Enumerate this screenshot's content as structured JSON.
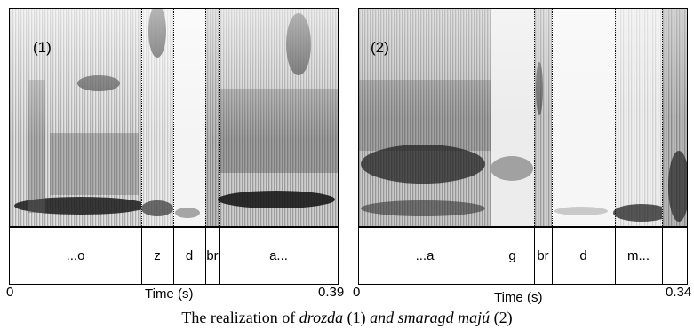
{
  "panels": [
    {
      "label": "(1)",
      "segments": [
        "...o",
        "z",
        "d",
        "br",
        "a..."
      ],
      "x_start": "0",
      "x_end": "0.39",
      "x_label": "Time (s)"
    },
    {
      "label": "(2)",
      "segments": [
        "...a",
        "g",
        "br",
        "d",
        "m..."
      ],
      "x_start": "0",
      "x_end": "0.34",
      "x_label": "Time (s)"
    }
  ],
  "caption": {
    "prefix": "The realization of ",
    "word1": "drozda",
    "num1": " (1) ",
    "word2": "and smaragd majú",
    "num2": " (2)"
  }
}
